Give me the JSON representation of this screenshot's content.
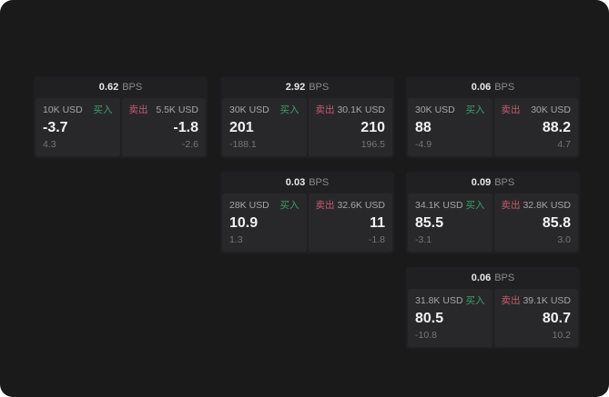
{
  "labels": {
    "bps_unit": "BPS",
    "buy": "买入",
    "sell": "卖出"
  },
  "colors": {
    "buy": "#3ca068",
    "sell": "#c75a6e",
    "canvas_bg": "#1a1a1b",
    "card_bg": "#202022",
    "panel_bg": "#28282a"
  },
  "cards": [
    {
      "bps": "0.62",
      "buy": {
        "amount": "10K USD",
        "value": "-3.7",
        "sub": "4.3"
      },
      "sell": {
        "amount": "5.5K USD",
        "value": "-1.8",
        "sub": "-2.6"
      }
    },
    {
      "bps": "2.92",
      "buy": {
        "amount": "30K USD",
        "value": "201",
        "sub": "-188.1"
      },
      "sell": {
        "amount": "30.1K USD",
        "value": "210",
        "sub": "196.5"
      }
    },
    {
      "bps": "0.06",
      "buy": {
        "amount": "30K USD",
        "value": "88",
        "sub": "-4.9"
      },
      "sell": {
        "amount": "30K USD",
        "value": "88.2",
        "sub": "4.7"
      }
    },
    {
      "bps": "0.03",
      "buy": {
        "amount": "28K USD",
        "value": "10.9",
        "sub": "1.3"
      },
      "sell": {
        "amount": "32.6K USD",
        "value": "11",
        "sub": "-1.8"
      }
    },
    {
      "bps": "0.09",
      "buy": {
        "amount": "34.1K USD",
        "value": "85.5",
        "sub": "-3.1"
      },
      "sell": {
        "amount": "32.8K USD",
        "value": "85.8",
        "sub": "3.0"
      }
    },
    {
      "bps": "0.06",
      "buy": {
        "amount": "31.8K USD",
        "value": "80.5",
        "sub": "-10.8"
      },
      "sell": {
        "amount": "39.1K USD",
        "value": "80.7",
        "sub": "10.2"
      }
    }
  ]
}
